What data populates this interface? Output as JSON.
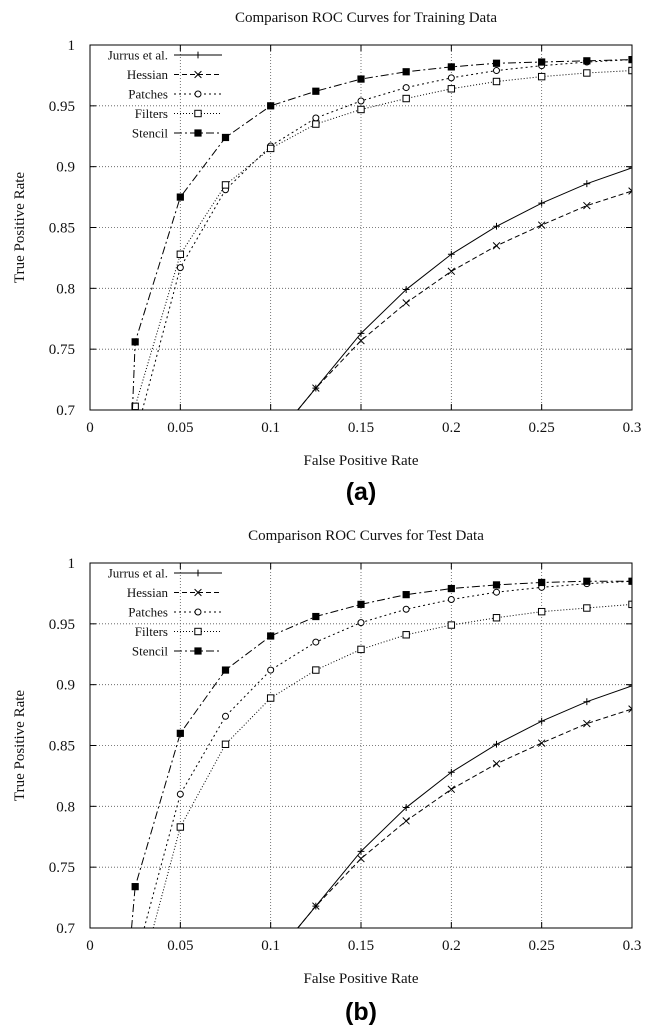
{
  "chart_data": [
    {
      "type": "line",
      "title": "Comparison ROC Curves for Training Data",
      "xlabel": "False Positive Rate",
      "ylabel": "True Positive Rate",
      "caption": "(a)",
      "xlim": [
        0,
        0.3
      ],
      "ylim": [
        0.7,
        1.0
      ],
      "xticks": [
        "0",
        "0.05",
        "0.1",
        "0.15",
        "0.2",
        "0.25",
        "0.3"
      ],
      "yticks": [
        "0.7",
        "0.75",
        "0.8",
        "0.85",
        "0.9",
        "0.95",
        "1"
      ],
      "grid": true,
      "legend_position": "top-left",
      "series": [
        {
          "name": "Jurrus et al.",
          "marker": "plus",
          "dash": "solid",
          "x": [
            0.115,
            0.125,
            0.15,
            0.175,
            0.2,
            0.225,
            0.25,
            0.275,
            0.3
          ],
          "y": [
            0.7,
            0.718,
            0.763,
            0.799,
            0.828,
            0.851,
            0.87,
            0.886,
            0.899
          ]
        },
        {
          "name": "Hessian",
          "marker": "x",
          "dash": "dashed",
          "x": [
            0.115,
            0.125,
            0.15,
            0.175,
            0.2,
            0.225,
            0.25,
            0.275,
            0.3
          ],
          "y": [
            0.7,
            0.718,
            0.757,
            0.788,
            0.814,
            0.835,
            0.852,
            0.868,
            0.88
          ]
        },
        {
          "name": "Patches",
          "marker": "circle",
          "dash": "dotted",
          "x": [
            0.029,
            0.05,
            0.075,
            0.1,
            0.125,
            0.15,
            0.175,
            0.2,
            0.225,
            0.25,
            0.275,
            0.3
          ],
          "y": [
            0.7,
            0.817,
            0.881,
            0.917,
            0.94,
            0.954,
            0.965,
            0.973,
            0.979,
            0.983,
            0.986,
            0.988
          ]
        },
        {
          "name": "Filters",
          "marker": "square-open",
          "dash": "fine-dotted",
          "x": [
            0.025,
            0.05,
            0.075,
            0.1,
            0.125,
            0.15,
            0.175,
            0.2,
            0.225,
            0.25,
            0.275,
            0.3
          ],
          "y": [
            0.703,
            0.828,
            0.885,
            0.915,
            0.935,
            0.947,
            0.956,
            0.964,
            0.97,
            0.974,
            0.977,
            0.979
          ]
        },
        {
          "name": "Stencil",
          "marker": "square-filled",
          "dash": "dash-dot",
          "x": [
            0.0235,
            0.025,
            0.05,
            0.075,
            0.1,
            0.125,
            0.15,
            0.175,
            0.2,
            0.225,
            0.25,
            0.275,
            0.3
          ],
          "y": [
            0.7,
            0.756,
            0.875,
            0.924,
            0.95,
            0.962,
            0.972,
            0.978,
            0.982,
            0.985,
            0.986,
            0.987,
            0.988
          ]
        }
      ]
    },
    {
      "type": "line",
      "title": "Comparison ROC Curves for Test Data",
      "xlabel": "False Positive Rate",
      "ylabel": "True Positive Rate",
      "caption": "(b)",
      "xlim": [
        0,
        0.3
      ],
      "ylim": [
        0.7,
        1.0
      ],
      "xticks": [
        "0",
        "0.05",
        "0.1",
        "0.15",
        "0.2",
        "0.25",
        "0.3"
      ],
      "yticks": [
        "0.7",
        "0.75",
        "0.8",
        "0.85",
        "0.9",
        "0.95",
        "1"
      ],
      "grid": true,
      "legend_position": "top-left",
      "series": [
        {
          "name": "Jurrus et al.",
          "marker": "plus",
          "dash": "solid",
          "x": [
            0.115,
            0.125,
            0.15,
            0.175,
            0.2,
            0.225,
            0.25,
            0.275,
            0.3
          ],
          "y": [
            0.7,
            0.718,
            0.763,
            0.799,
            0.828,
            0.851,
            0.87,
            0.886,
            0.899
          ]
        },
        {
          "name": "Hessian",
          "marker": "x",
          "dash": "dashed",
          "x": [
            0.115,
            0.125,
            0.15,
            0.175,
            0.2,
            0.225,
            0.25,
            0.275,
            0.3
          ],
          "y": [
            0.7,
            0.718,
            0.757,
            0.788,
            0.814,
            0.835,
            0.852,
            0.868,
            0.88
          ]
        },
        {
          "name": "Patches",
          "marker": "circle",
          "dash": "dotted",
          "x": [
            0.03,
            0.05,
            0.075,
            0.1,
            0.125,
            0.15,
            0.175,
            0.2,
            0.225,
            0.25,
            0.275,
            0.3
          ],
          "y": [
            0.7,
            0.81,
            0.874,
            0.912,
            0.935,
            0.951,
            0.962,
            0.97,
            0.976,
            0.98,
            0.983,
            0.985
          ]
        },
        {
          "name": "Filters",
          "marker": "square-open",
          "dash": "fine-dotted",
          "x": [
            0.035,
            0.05,
            0.075,
            0.1,
            0.125,
            0.15,
            0.175,
            0.2,
            0.225,
            0.25,
            0.275,
            0.3
          ],
          "y": [
            0.7,
            0.783,
            0.851,
            0.889,
            0.912,
            0.929,
            0.941,
            0.949,
            0.955,
            0.96,
            0.963,
            0.966
          ]
        },
        {
          "name": "Stencil",
          "marker": "square-filled",
          "dash": "dash-dot",
          "x": [
            0.023,
            0.025,
            0.05,
            0.075,
            0.1,
            0.125,
            0.15,
            0.175,
            0.2,
            0.225,
            0.25,
            0.275,
            0.3
          ],
          "y": [
            0.7,
            0.734,
            0.86,
            0.912,
            0.94,
            0.956,
            0.966,
            0.974,
            0.979,
            0.982,
            0.984,
            0.985,
            0.985
          ]
        }
      ]
    }
  ]
}
